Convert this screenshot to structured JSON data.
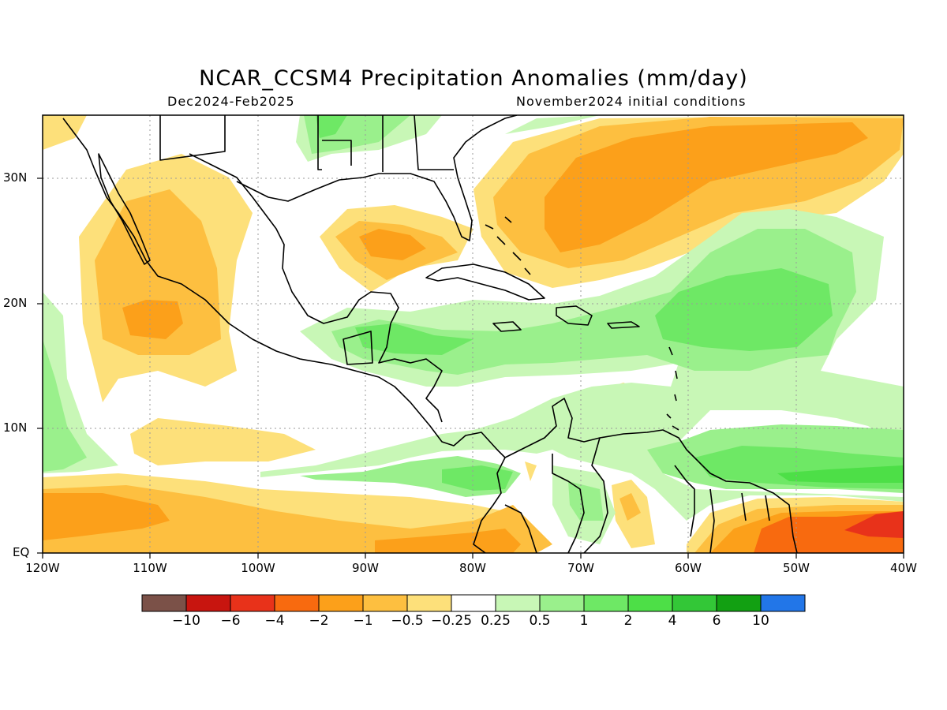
{
  "header": {
    "title": "NCAR_CCSM4 Precipitation Anomalies (mm/day)",
    "period": "Dec2024-Feb2025",
    "init": "November2024 initial conditions"
  },
  "axes": {
    "x_labels": [
      "120W",
      "110W",
      "100W",
      "90W",
      "80W",
      "70W",
      "60W",
      "50W",
      "40W"
    ],
    "y_labels": [
      "30N",
      "20N",
      "10N",
      "EQ"
    ]
  },
  "colorbar": {
    "colors": [
      "#7b5148",
      "#c8150f",
      "#e8321a",
      "#f86a0f",
      "#fca01a",
      "#fdbf40",
      "#fde07a",
      "#ffffff",
      "#c8f7b6",
      "#9af08c",
      "#6ee865",
      "#4ddf47",
      "#33c737",
      "#12a012",
      "#2276e8"
    ],
    "labels": [
      "-10",
      "-6",
      "-4",
      "-2",
      "-1",
      "-0.5",
      "-0.25",
      "0.25",
      "0.5",
      "1",
      "2",
      "4",
      "6",
      "10"
    ]
  }
}
